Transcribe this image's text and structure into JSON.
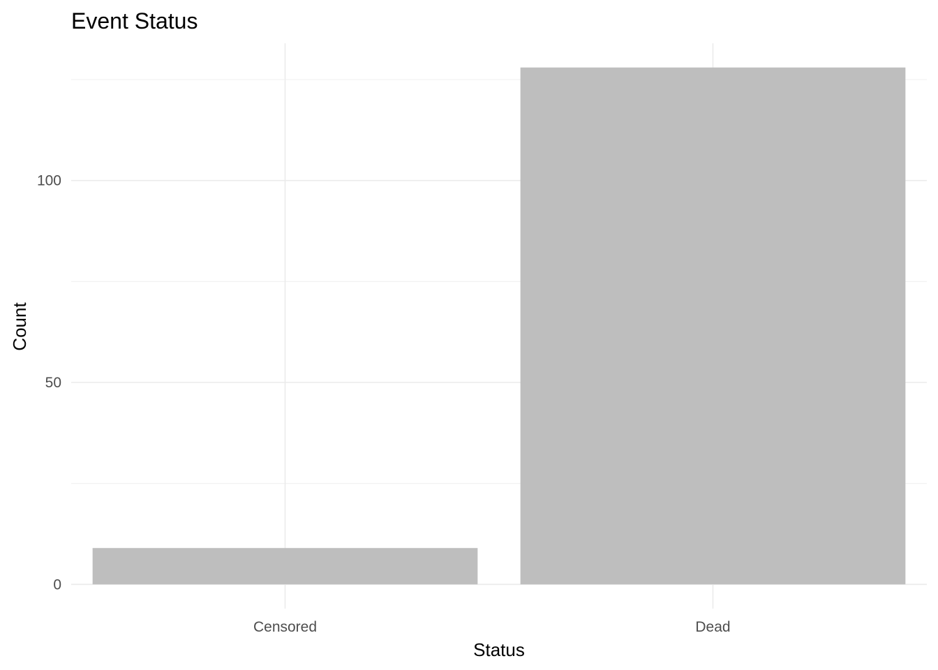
{
  "chart_data": {
    "type": "bar",
    "title": "Event Status",
    "xlabel": "Status",
    "ylabel": "Count",
    "categories": [
      "Censored",
      "Dead"
    ],
    "values": [
      9,
      128
    ],
    "ylim": [
      -6,
      134
    ],
    "yticks": [
      0,
      50,
      100
    ],
    "ytick_labels": [
      "0",
      "50",
      "100"
    ],
    "yminor": [
      25,
      75,
      125
    ],
    "grid": true,
    "bar_color": "#bebebe",
    "grid_color": "#ebebeb"
  }
}
